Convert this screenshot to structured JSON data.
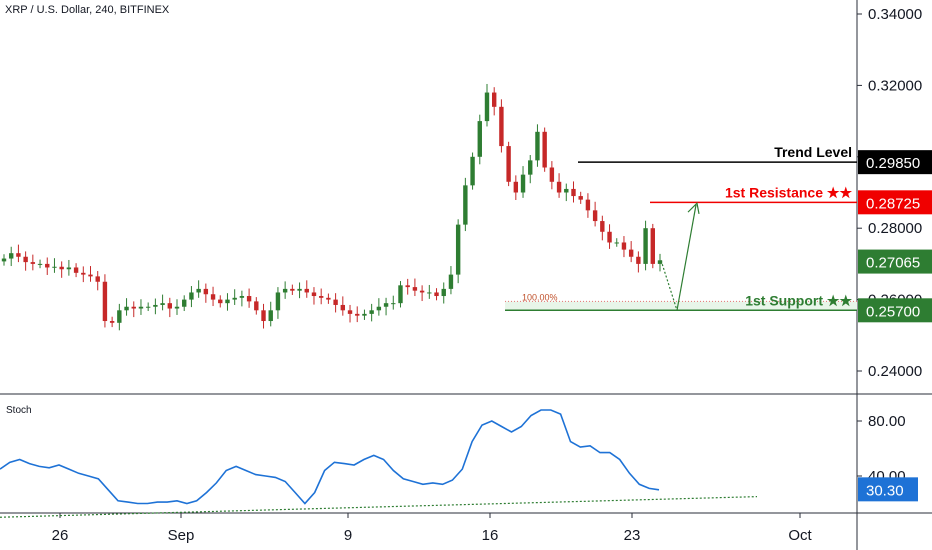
{
  "header": {
    "symbol_title": "XRP / U.S. Dollar, 240, BITFINEX"
  },
  "colors": {
    "up": "#26a69a",
    "down": "#ef5350",
    "candle_up_body": "#2e7d32",
    "candle_down_body": "#c62828",
    "resistance": "#f00000",
    "support": "#2e7d32",
    "trend": "#000000",
    "stoch_line": "#1e72d6",
    "price_badge": "#2e7d32"
  },
  "chart_data": [
    {
      "type": "candlestick",
      "title": "XRP / U.S. Dollar, 240, BITFINEX",
      "y_axis": {
        "ticks": [
          "0.34000",
          "0.32000",
          "0.30000",
          "0.28000",
          "0.26000",
          "0.24000"
        ],
        "ylim": [
          0.235,
          0.345
        ],
        "position": "right"
      },
      "x_axis": {
        "ticks": [
          "26",
          "Sep",
          "9",
          "16",
          "23",
          "Oct"
        ]
      },
      "levels": [
        {
          "name": "Trend Level",
          "value": 0.2985,
          "label": "0.29850",
          "badge_color": "#000000"
        },
        {
          "name": "1st Resistance ★★",
          "value": 0.28725,
          "label": "0.28725",
          "badge_color": "#f00000"
        },
        {
          "name": "1st Support ★★",
          "value": 0.257,
          "label": "0.25700",
          "badge_color": "#2e7d32"
        }
      ],
      "current_price": {
        "value": 0.27065,
        "label": "0.27065"
      },
      "fib_label": "100.00%",
      "close_path": [
        0.2715,
        0.273,
        0.272,
        0.2705,
        0.27,
        0.27,
        0.269,
        0.2692,
        0.2685,
        0.269,
        0.2675,
        0.267,
        0.2665,
        0.265,
        0.254,
        0.2535,
        0.257,
        0.258,
        0.2575,
        0.258,
        0.258,
        0.2585,
        0.259,
        0.2575,
        0.258,
        0.26,
        0.262,
        0.263,
        0.2615,
        0.26,
        0.259,
        0.26,
        0.2605,
        0.261,
        0.2595,
        0.257,
        0.254,
        0.257,
        0.262,
        0.263,
        0.2625,
        0.263,
        0.262,
        0.261,
        0.2605,
        0.26,
        0.2585,
        0.257,
        0.256,
        0.2555,
        0.256,
        0.257,
        0.258,
        0.259,
        0.259,
        0.264,
        0.2635,
        0.2625,
        0.262,
        0.262,
        0.261,
        0.263,
        0.267,
        0.281,
        0.292,
        0.3,
        0.31,
        0.318,
        0.314,
        0.303,
        0.293,
        0.29,
        0.295,
        0.299,
        0.307,
        0.297,
        0.293,
        0.29,
        0.291,
        0.289,
        0.288,
        0.285,
        0.282,
        0.279,
        0.276,
        0.276,
        0.274,
        0.272,
        0.27,
        0.28,
        0.27,
        0.271
      ]
    },
    {
      "type": "line",
      "title": "Stoch",
      "y_axis": {
        "ticks": [
          "80.00",
          "40.00"
        ],
        "ylim": [
          15,
          95
        ],
        "position": "right"
      },
      "current_value": {
        "value": 30.3,
        "label": "30.30"
      },
      "series": [
        {
          "values": [
            45,
            50,
            52,
            49,
            47,
            46,
            48,
            45,
            42,
            40,
            38,
            30,
            22,
            21,
            20,
            20,
            21,
            21,
            22,
            20,
            22,
            28,
            35,
            44,
            47,
            44,
            41,
            40,
            39,
            36,
            28,
            20,
            28,
            44,
            50,
            49,
            48,
            52,
            55,
            52,
            44,
            38,
            36,
            34,
            35,
            34,
            37,
            45,
            65,
            77,
            80,
            76,
            72,
            76,
            84,
            88,
            88,
            85,
            65,
            61,
            62,
            57,
            57,
            52,
            42,
            34,
            31,
            30
          ]
        },
        {
          "name": "trendline",
          "values": [
            10,
            25
          ]
        }
      ]
    }
  ]
}
